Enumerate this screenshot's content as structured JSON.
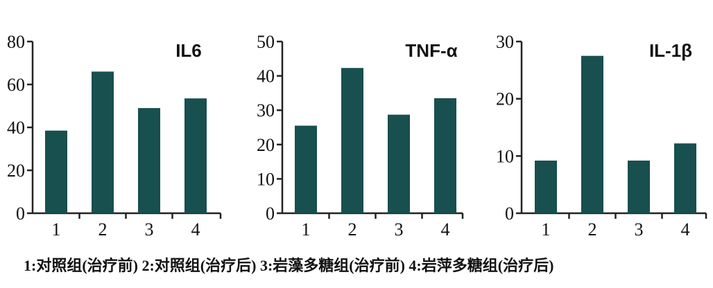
{
  "chart_data": [
    {
      "type": "bar",
      "title": "IL6",
      "categories": [
        "1",
        "2",
        "3",
        "4"
      ],
      "values": [
        38.5,
        66,
        49,
        53.5
      ],
      "ylim": [
        0,
        80
      ],
      "yticks": [
        "0",
        "20",
        "40",
        "60",
        "80"
      ],
      "color": "#184f4f"
    },
    {
      "type": "bar",
      "title": "TNF-α",
      "categories": [
        "1",
        "2",
        "3",
        "4"
      ],
      "values": [
        25.5,
        42.3,
        28.7,
        33.5
      ],
      "ylim": [
        0,
        50
      ],
      "yticks": [
        "0",
        "10",
        "20",
        "30",
        "40",
        "50"
      ],
      "color": "#184f4f"
    },
    {
      "type": "bar",
      "title": "IL-1β",
      "categories": [
        "1",
        "2",
        "3",
        "4"
      ],
      "values": [
        9.2,
        27.5,
        9.2,
        12.2
      ],
      "ylim": [
        0,
        30
      ],
      "yticks": [
        "0",
        "10",
        "20",
        "30"
      ],
      "color": "#184f4f"
    }
  ],
  "legend": "1:对照组(治疗前)  2:对照组(治疗后)  3:岩藻多糖组(治疗前)  4:岩萍多糖组(治疗后)"
}
